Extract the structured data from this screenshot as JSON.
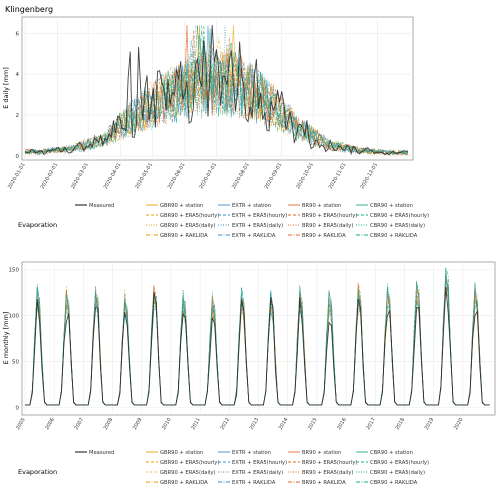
{
  "colors": {
    "measured": "#222222",
    "GBR90": "#e69f00",
    "EXTR": "#3a8fc7",
    "BR90": "#e06a2c",
    "CBR90": "#1aa88c",
    "grid": "#ebebeb"
  },
  "chart_data": [
    {
      "type": "line",
      "title": "Klingenberg",
      "ylabel": "E daily [mm]",
      "xlabel": "",
      "ylim": [
        -0.2,
        6.8
      ],
      "yticks": [
        0,
        2,
        4,
        6
      ],
      "x_tick_labels": [
        "2020-01-01",
        "2020-02-01",
        "2020-03-01",
        "2020-04-01",
        "2020-05-01",
        "2020-06-01",
        "2020-07-01",
        "2020-08-01",
        "2020-09-01",
        "2020-10-01",
        "2020-11-01",
        "2020-12-01"
      ],
      "grid": true,
      "series_shape": {
        "months": [
          "Jan",
          "Feb",
          "Mar",
          "Apr",
          "May",
          "Jun",
          "Jul",
          "Aug",
          "Sep",
          "Oct",
          "Nov",
          "Dec"
        ],
        "approx_monthly_mean": [
          0.2,
          0.35,
          0.8,
          2.0,
          2.8,
          3.3,
          3.4,
          2.6,
          1.3,
          0.5,
          0.25,
          0.15
        ],
        "approx_peak": 6.4
      },
      "legend_title": "Evaporation",
      "legend": [
        [
          "Measured",
          "GBR90 + station",
          "EXTR + station",
          "BR90 + station",
          "CBR90 + station"
        ],
        [
          "",
          "GBR90 + ERA5(hourly)",
          "EXTR + ERA5(hourly)",
          "BR90 + ERA5(hourly)",
          "CBR90 + ERA5(hourly)"
        ],
        [
          "",
          "GBR90 + ERA5(daily)",
          "EXTR + ERA5(daily)",
          "BR90 + ERA5(daily)",
          "CBR90 + ERA5(daily)"
        ],
        [
          "",
          "GBR90 + RAKLIDA",
          "EXTR + RAKLIDA",
          "BR90 + RAKLIDA",
          "CBR90 + RAKLIDA"
        ]
      ]
    },
    {
      "type": "line",
      "title": "",
      "ylabel": "E monthly [mm]",
      "xlabel": "",
      "ylim": [
        -8,
        158
      ],
      "yticks": [
        0,
        50,
        100,
        150
      ],
      "x_tick_labels": [
        "2005",
        "2006",
        "2007",
        "2008",
        "2009",
        "2010",
        "2011",
        "2012",
        "2013",
        "2014",
        "2015",
        "2016",
        "2017",
        "2018",
        "2019",
        "2020"
      ],
      "grid": true,
      "annual_peaks_mm": [
        125,
        122,
        128,
        118,
        130,
        121,
        118,
        122,
        120,
        125,
        123,
        126,
        128,
        132,
        150,
        128
      ],
      "legend_title": "Evaporation",
      "legend": [
        [
          "Measured",
          "GBR90 + station",
          "EXTR + station",
          "BR90 + station",
          "CBR90 + station"
        ],
        [
          "",
          "GBR90 + ERA5(hourly)",
          "EXTR + ERA5(hourly)",
          "BR90 + ERA5(hourly)",
          "CBR90 + ERA5(hourly)"
        ],
        [
          "",
          "GBR90 + ERA5(daily)",
          "EXTR + ERA5(daily)",
          "BR90 + ERA5(daily)",
          "CBR90 + ERA5(daily)"
        ],
        [
          "",
          "GBR90 + RAKLIDA",
          "EXTR + RAKLIDA",
          "BR90 + RAKLIDA",
          "CBR90 + RAKLIDA"
        ]
      ]
    }
  ]
}
